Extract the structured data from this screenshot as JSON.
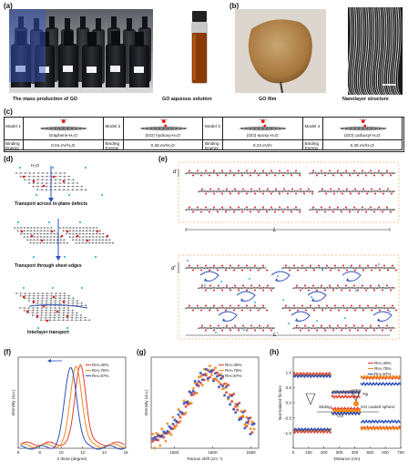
{
  "panels": {
    "a": {
      "label": "(a)",
      "caption_left": "The mass production of GO",
      "caption_right": "GO aqueous solution"
    },
    "b": {
      "label": "(b)",
      "caption_left": "GO film",
      "caption_right": "Nanolayer structure"
    },
    "c": {
      "label": "(c)",
      "models": [
        {
          "model": "Model 1",
          "name": "Graphene-H₂O",
          "energy": "0.04 eV/H₂O"
        },
        {
          "model": "Model 2",
          "name": "(GO) hydroxy-H₂O",
          "energy": "0.28 eV/H₂O"
        },
        {
          "model": "Model 3",
          "name": "(GO) epoxy-H₂O",
          "energy": "0.23 eV/H"
        },
        {
          "model": "Model 4",
          "name": "(GO) carboxyl-H₂O",
          "energy": "0.36 eV/H₂O"
        }
      ],
      "energy_label": "Binding Energy"
    },
    "d": {
      "label": "(d)",
      "h2o": "H₂O",
      "captions": [
        "Transport across in-plane defects",
        "Transport through sheet edges",
        "Interlayer transport"
      ]
    },
    "e": {
      "label": "(e)",
      "d_label": "d",
      "dprime_label": "d'",
      "L_label": "L",
      "Lprime_label": "L'"
    },
    "f": {
      "label": "(f)",
      "xlabel": "2 theta (degree)",
      "ylabel": "Intensity (a.u.)"
    },
    "g": {
      "label": "(g)",
      "xlabel": "Raman shift (cm⁻¹)",
      "ylabel": "Intensity (a.u.)"
    },
    "h": {
      "label": "(h)",
      "xlabel": "Distance (nm)",
      "ylabel": "Normalized friction",
      "sliding": "Sliding",
      "tip": "Tip",
      "go": "GO",
      "sphere": "GO coated sphere"
    }
  },
  "colors": {
    "rh40": "#e23b2b",
    "rh75": "#f08a1c",
    "rh97": "#2b50b8"
  },
  "chart_data": [
    {
      "panel": "f",
      "type": "line",
      "xlabel": "2 theta (degree)",
      "ylabel": "Intensity (a.u.)",
      "xlim": [
        6,
        16
      ],
      "xticks": [
        6,
        8,
        10,
        12,
        14,
        16
      ],
      "series": [
        {
          "name": "RH=40%",
          "peak": 11.8,
          "width": 0.7
        },
        {
          "name": "RH=75%",
          "peak": 11.4,
          "width": 0.75
        },
        {
          "name": "RH=97%",
          "peak": 10.9,
          "width": 0.8
        }
      ]
    },
    {
      "panel": "g",
      "type": "scatter",
      "xlabel": "Raman shift (cm⁻¹)",
      "ylabel": "Intensity (a.u.)",
      "xlim": [
        1520,
        1660
      ],
      "xticks": [
        1550,
        1600,
        1650
      ],
      "series": [
        {
          "name": "RH=40%",
          "peak": 1598
        },
        {
          "name": "RH=75%",
          "peak": 1596
        },
        {
          "name": "RH=97%",
          "peak": 1594
        }
      ]
    },
    {
      "panel": "h",
      "type": "line",
      "xlabel": "Distance (nm)",
      "ylabel": "Normalized friction",
      "xlim": [
        0,
        700
      ],
      "xticks": [
        0,
        100,
        200,
        300,
        400,
        500,
        600,
        700
      ],
      "ylim": [
        -1.5,
        1.5
      ],
      "yticks": [
        -1.0,
        -0.5,
        0.0,
        0.5,
        1.0
      ],
      "series": [
        {
          "name": "RH=40%",
          "segments": [
            {
              "x": [
                0,
                250
              ],
              "y": 0.95
            },
            {
              "x": [
                250,
                440
              ],
              "y": 0.2
            },
            {
              "x": [
                440,
                700
              ],
              "y": 0.82
            }
          ]
        },
        {
          "name": "RH=75%",
          "segments": [
            {
              "x": [
                0,
                250
              ],
              "y": 0.9
            },
            {
              "x": [
                250,
                440
              ],
              "y": 0.35
            },
            {
              "x": [
                440,
                700
              ],
              "y": 0.85
            }
          ]
        },
        {
          "name": "RH=97%",
          "segments": [
            {
              "x": [
                0,
                250
              ],
              "y": 0.88
            },
            {
              "x": [
                250,
                440
              ],
              "y": -0.35
            },
            {
              "x": [
                440,
                700
              ],
              "y": 0.62
            }
          ]
        }
      ]
    }
  ]
}
